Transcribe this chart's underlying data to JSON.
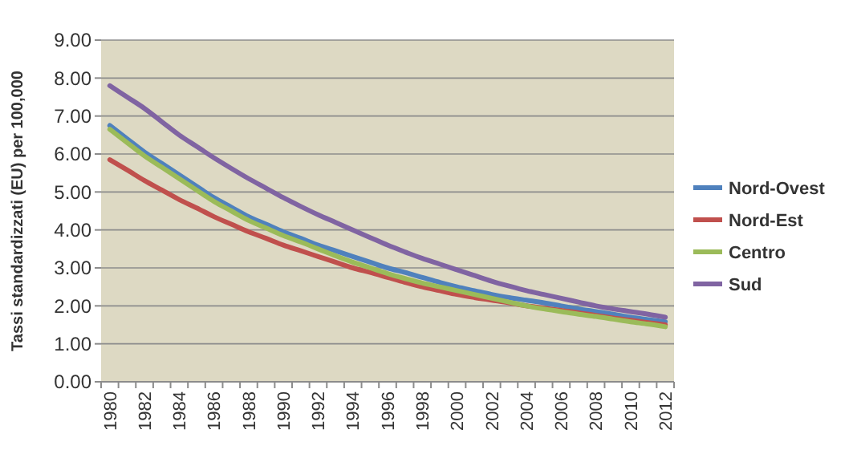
{
  "chart_data": {
    "type": "line",
    "ylabel": "Tassi standardizzati (EU) per 100,000",
    "categories": [
      "1980",
      null,
      "1982",
      null,
      "1984",
      null,
      "1986",
      null,
      "1988",
      null,
      "1990",
      null,
      "1992",
      null,
      "1994",
      null,
      "1996",
      null,
      "1998",
      null,
      "2000",
      null,
      "2002",
      null,
      "2004",
      null,
      "2006",
      null,
      "2008",
      null,
      "2010",
      null,
      "2012"
    ],
    "series": [
      {
        "name": "Nord-Ovest",
        "color": "#4f81bd",
        "values": [
          6.75,
          6.4,
          6.05,
          5.75,
          5.45,
          5.15,
          4.85,
          4.6,
          4.35,
          4.15,
          3.95,
          3.78,
          3.6,
          3.45,
          3.3,
          3.15,
          3.0,
          2.88,
          2.75,
          2.62,
          2.5,
          2.4,
          2.3,
          2.22,
          2.15,
          2.08,
          2.0,
          1.92,
          1.85,
          1.78,
          1.7,
          1.64,
          1.58
        ]
      },
      {
        "name": "Nord-Est",
        "color": "#c0504d",
        "values": [
          5.85,
          5.58,
          5.3,
          5.05,
          4.8,
          4.58,
          4.35,
          4.15,
          3.95,
          3.78,
          3.6,
          3.45,
          3.3,
          3.15,
          3.0,
          2.88,
          2.75,
          2.62,
          2.5,
          2.4,
          2.3,
          2.22,
          2.15,
          2.08,
          2.0,
          1.94,
          1.88,
          1.82,
          1.75,
          1.68,
          1.62,
          1.56,
          1.5
        ]
      },
      {
        "name": "Centro",
        "color": "#9bbb59",
        "values": [
          6.65,
          6.3,
          5.95,
          5.65,
          5.35,
          5.05,
          4.75,
          4.5,
          4.25,
          4.05,
          3.85,
          3.68,
          3.5,
          3.32,
          3.15,
          3.0,
          2.85,
          2.72,
          2.6,
          2.5,
          2.4,
          2.3,
          2.2,
          2.1,
          2.0,
          1.92,
          1.85,
          1.78,
          1.72,
          1.65,
          1.58,
          1.52,
          1.45
        ]
      },
      {
        "name": "Sud",
        "color": "#8064a2",
        "values": [
          7.8,
          7.5,
          7.2,
          6.85,
          6.5,
          6.2,
          5.9,
          5.62,
          5.35,
          5.1,
          4.85,
          4.62,
          4.4,
          4.2,
          4.0,
          3.8,
          3.6,
          3.42,
          3.25,
          3.1,
          2.95,
          2.8,
          2.65,
          2.52,
          2.4,
          2.3,
          2.2,
          2.1,
          2.0,
          1.92,
          1.85,
          1.78,
          1.7
        ]
      }
    ],
    "ylim": [
      0,
      9
    ],
    "yticks": [
      {
        "value": 0,
        "label": "0.00"
      },
      {
        "value": 1,
        "label": "1.00"
      },
      {
        "value": 2,
        "label": "2.00"
      },
      {
        "value": 3,
        "label": "3.00"
      },
      {
        "value": 4,
        "label": "4.00"
      },
      {
        "value": 5,
        "label": "5.00"
      },
      {
        "value": 6,
        "label": "6.00"
      },
      {
        "value": 7,
        "label": "7.00"
      },
      {
        "value": 8,
        "label": "8.00"
      },
      {
        "value": 9,
        "label": "9.00"
      }
    ],
    "grid": "y",
    "legend": "right",
    "marker": "none",
    "line_style": "solid"
  }
}
